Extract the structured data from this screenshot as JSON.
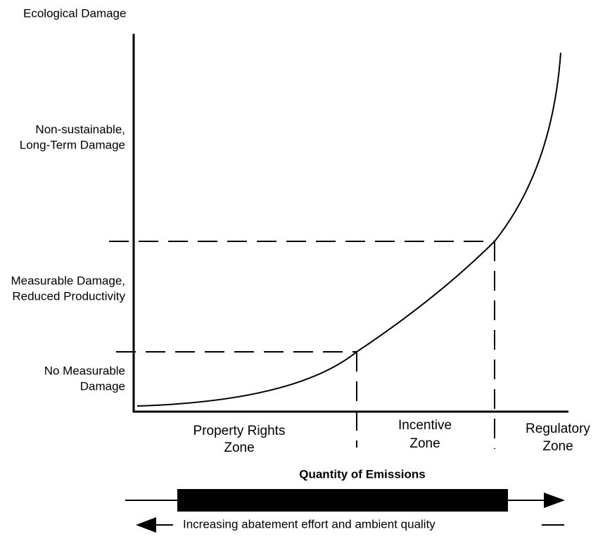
{
  "y_axis_title": "Ecological Damage",
  "y_labels": [
    [
      "Non-sustainable,",
      "Long-Term Damage"
    ],
    [
      "Measurable Damage,",
      "Reduced Productivity"
    ],
    [
      "No Measurable",
      "Damage"
    ]
  ],
  "zones": [
    [
      "Property Rights",
      "Zone"
    ],
    [
      "Incentive",
      "Zone"
    ],
    [
      "Regulatory",
      "Zone"
    ]
  ],
  "x_axis_title": "Quantity of Emissions",
  "reverse_arrow_label": "Increasing abatement effort and ambient quality"
}
